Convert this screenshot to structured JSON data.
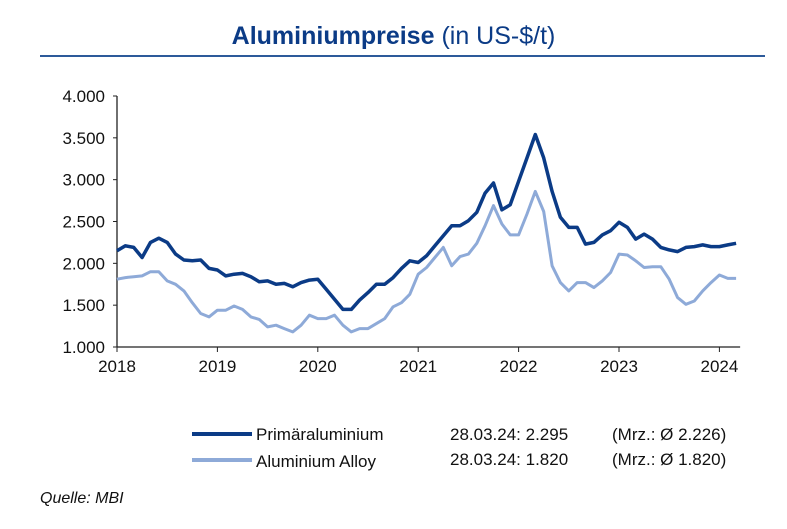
{
  "title": {
    "bold": "Aluminiumpreise",
    "unit": "(in US-$/t)"
  },
  "source": "Quelle: MBI",
  "colors": {
    "primary": "#0b3b86",
    "alloy": "#8eaad8",
    "title": "#0b3b86"
  },
  "legend": [
    {
      "name": "Primäraluminium",
      "last": "28.03.24: 2.295",
      "avg": "(Mrz.: Ø 2.226)"
    },
    {
      "name": "Aluminium Alloy",
      "last": "28.03.24: 1.820",
      "avg": "(Mrz.: Ø 1.820)"
    }
  ],
  "chart_data": {
    "type": "line",
    "title": "Aluminiumpreise (in US-$/t)",
    "xlabel": "",
    "ylabel": "US-$/t",
    "x_start": "2018-01",
    "frequency": "monthly",
    "xticks": [
      "2018",
      "2019",
      "2020",
      "2021",
      "2022",
      "2023",
      "2024"
    ],
    "yticks": [
      "1.000",
      "1.500",
      "2.000",
      "2.500",
      "3.000",
      "3.500",
      "4.000"
    ],
    "ylim": [
      1000,
      4000
    ],
    "grid": false,
    "legend_position": "bottom",
    "series": [
      {
        "name": "Primäraluminium",
        "values": [
          2150,
          2210,
          2190,
          2070,
          2250,
          2300,
          2250,
          2110,
          2040,
          2030,
          2040,
          1940,
          1920,
          1850,
          1870,
          1880,
          1840,
          1780,
          1790,
          1750,
          1760,
          1720,
          1770,
          1800,
          1810,
          1690,
          1570,
          1450,
          1450,
          1560,
          1650,
          1750,
          1750,
          1830,
          1940,
          2030,
          2010,
          2090,
          2210,
          2330,
          2450,
          2450,
          2510,
          2610,
          2840,
          2960,
          2640,
          2700,
          2980,
          3260,
          3540,
          3260,
          2860,
          2550,
          2430,
          2430,
          2230,
          2250,
          2340,
          2390,
          2490,
          2430,
          2290,
          2350,
          2290,
          2190,
          2160,
          2140,
          2190,
          2200,
          2220,
          2200,
          2200,
          2220,
          2240
        ]
      },
      {
        "name": "Aluminium Alloy",
        "values": [
          1810,
          1830,
          1840,
          1850,
          1900,
          1900,
          1790,
          1750,
          1670,
          1530,
          1400,
          1360,
          1440,
          1440,
          1490,
          1450,
          1360,
          1330,
          1240,
          1260,
          1220,
          1180,
          1260,
          1380,
          1340,
          1340,
          1380,
          1260,
          1180,
          1220,
          1220,
          1280,
          1340,
          1480,
          1530,
          1630,
          1870,
          1950,
          2070,
          2190,
          1970,
          2080,
          2110,
          2240,
          2450,
          2690,
          2470,
          2340,
          2340,
          2590,
          2860,
          2620,
          1970,
          1770,
          1670,
          1770,
          1770,
          1710,
          1790,
          1890,
          2110,
          2100,
          2030,
          1950,
          1960,
          1960,
          1810,
          1590,
          1510,
          1550,
          1670,
          1770,
          1860,
          1820,
          1820
        ]
      }
    ]
  }
}
